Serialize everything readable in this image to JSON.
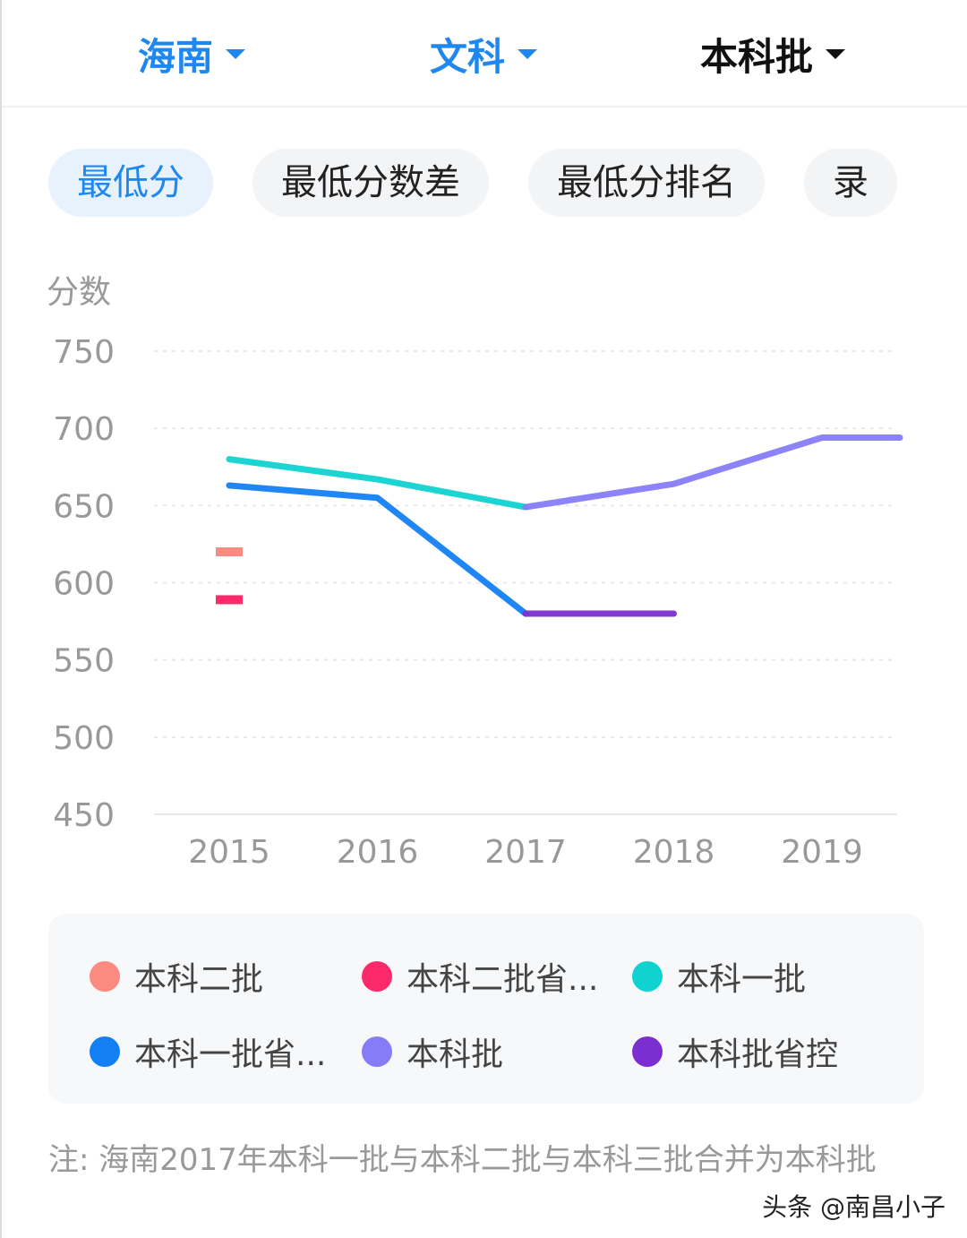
{
  "header": {
    "province": "海南",
    "subject": "文科",
    "batch": "本科批"
  },
  "tabs": [
    "最低分",
    "最低分数差",
    "最低分排名",
    "录"
  ],
  "chart_data": {
    "type": "line",
    "ylabel": "分数",
    "ylim": [
      450,
      750
    ],
    "yticks": [
      750,
      700,
      650,
      600,
      550,
      500,
      450
    ],
    "categories": [
      2015,
      2016,
      2017,
      2018,
      2019
    ],
    "grid": true,
    "legend_position": "bottom",
    "series": [
      {
        "name": "本科二批",
        "color": "#fb8a80",
        "values": [
          620,
          null,
          null,
          null,
          null
        ]
      },
      {
        "name": "本科二批省...",
        "color": "#fc2a6a",
        "values": [
          589,
          null,
          null,
          null,
          null
        ]
      },
      {
        "name": "本科一批",
        "color": "#10d3d0",
        "values": [
          680,
          667,
          649,
          null,
          null
        ]
      },
      {
        "name": "本科一批省...",
        "color": "#137ff5",
        "values": [
          663,
          655,
          580,
          null,
          null
        ]
      },
      {
        "name": "本科批",
        "color": "#877cf8",
        "values": [
          null,
          null,
          649,
          664,
          694
        ]
      },
      {
        "name": "本科批省控",
        "color": "#7c2fd1",
        "values": [
          null,
          null,
          580,
          580,
          null
        ]
      }
    ]
  },
  "note": "注: 海南2017年本科一批与本科二批与本科三批合并为本科批",
  "watermark": "头条 @南昌小子"
}
